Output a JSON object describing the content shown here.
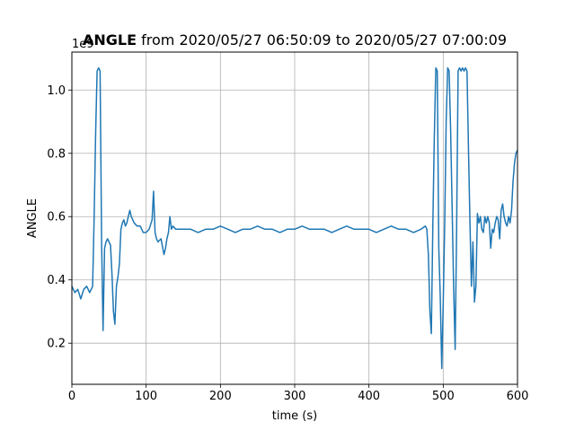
{
  "chart_data": {
    "type": "line",
    "title_bold": "ANGLE",
    "title_rest": " from 2020/05/27 06:50:09 to 2020/05/27 07:00:09",
    "xlabel": "time (s)",
    "ylabel": "ANGLE",
    "offset_text": "1e9",
    "xlim": [
      0,
      600
    ],
    "ylim": [
      0.07,
      1.12
    ],
    "grid": true,
    "line_color": "#1f77b4",
    "x_ticks": [
      0,
      100,
      200,
      300,
      400,
      500,
      600
    ],
    "x_tick_labels": [
      "0",
      "100",
      "200",
      "300",
      "400",
      "500",
      "600"
    ],
    "y_ticks": [
      0.2,
      0.4,
      0.6,
      0.8,
      1.0
    ],
    "y_tick_labels": [
      "0.2",
      "0.4",
      "0.6",
      "0.8",
      "1.0"
    ],
    "series": [
      {
        "x": [
          0,
          4,
          8,
          12,
          16,
          20,
          24,
          28,
          30,
          32,
          34,
          36,
          38,
          40,
          42,
          44,
          46,
          48,
          50,
          52,
          54,
          56,
          58,
          60,
          62,
          64,
          66,
          68,
          70,
          72,
          74,
          76,
          78,
          80,
          84,
          88,
          92,
          96,
          100,
          104,
          108,
          110,
          112,
          114,
          116,
          120,
          124,
          126,
          128,
          130,
          132,
          134,
          136,
          140,
          150,
          160,
          170,
          180,
          190,
          200,
          210,
          220,
          230,
          240,
          250,
          260,
          270,
          280,
          290,
          300,
          310,
          320,
          330,
          340,
          350,
          360,
          370,
          380,
          390,
          400,
          410,
          420,
          430,
          440,
          450,
          460,
          470,
          476,
          478,
          480,
          482,
          484,
          486,
          488,
          490,
          492,
          494,
          496,
          498,
          500,
          502,
          504,
          506,
          508,
          510,
          512,
          514,
          516,
          518,
          520,
          522,
          524,
          526,
          528,
          530,
          532,
          534,
          536,
          538,
          540,
          542,
          544,
          546,
          548,
          550,
          552,
          554,
          556,
          558,
          560,
          562,
          564,
          566,
          568,
          570,
          572,
          574,
          576,
          578,
          580,
          582,
          584,
          586,
          588,
          590,
          592,
          594,
          596,
          598,
          600
        ],
        "y": [
          0.38,
          0.36,
          0.37,
          0.34,
          0.37,
          0.38,
          0.36,
          0.38,
          0.6,
          0.87,
          1.06,
          1.07,
          1.06,
          0.52,
          0.24,
          0.5,
          0.52,
          0.53,
          0.52,
          0.51,
          0.42,
          0.3,
          0.26,
          0.38,
          0.41,
          0.45,
          0.56,
          0.58,
          0.59,
          0.57,
          0.58,
          0.6,
          0.62,
          0.6,
          0.58,
          0.57,
          0.57,
          0.55,
          0.55,
          0.56,
          0.59,
          0.68,
          0.55,
          0.53,
          0.52,
          0.53,
          0.48,
          0.5,
          0.53,
          0.55,
          0.6,
          0.56,
          0.57,
          0.56,
          0.56,
          0.56,
          0.55,
          0.56,
          0.56,
          0.57,
          0.56,
          0.55,
          0.56,
          0.56,
          0.57,
          0.56,
          0.56,
          0.55,
          0.56,
          0.56,
          0.57,
          0.56,
          0.56,
          0.56,
          0.55,
          0.56,
          0.57,
          0.56,
          0.56,
          0.56,
          0.55,
          0.56,
          0.57,
          0.56,
          0.56,
          0.55,
          0.56,
          0.57,
          0.56,
          0.48,
          0.3,
          0.23,
          0.58,
          0.85,
          1.07,
          1.06,
          0.5,
          0.35,
          0.12,
          0.32,
          0.58,
          0.9,
          1.07,
          1.06,
          0.87,
          0.62,
          0.38,
          0.18,
          0.55,
          1.06,
          1.07,
          1.06,
          1.07,
          1.06,
          1.07,
          1.06,
          0.82,
          0.58,
          0.38,
          0.52,
          0.33,
          0.38,
          0.61,
          0.58,
          0.6,
          0.56,
          0.55,
          0.6,
          0.58,
          0.6,
          0.58,
          0.5,
          0.56,
          0.55,
          0.58,
          0.6,
          0.59,
          0.53,
          0.62,
          0.64,
          0.6,
          0.58,
          0.57,
          0.6,
          0.58,
          0.62,
          0.71,
          0.77,
          0.8,
          0.81
        ]
      }
    ]
  }
}
